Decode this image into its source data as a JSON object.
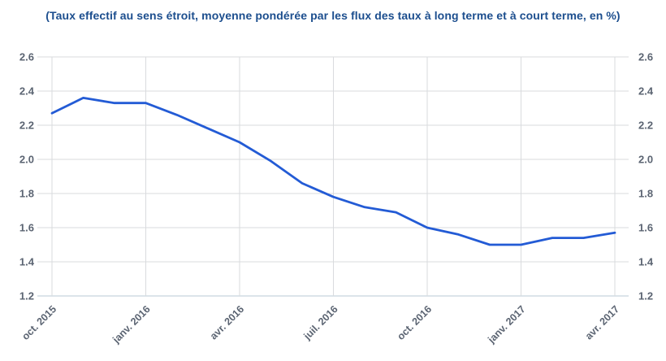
{
  "title": "(Taux effectif au sens étroit, moyenne pondérée par les flux des taux à long terme et à court terme, en %)",
  "colors": {
    "title": "#1c4e8e",
    "line": "#235bd5",
    "axis_label": "#5b6472",
    "gridline": "#d9dbde",
    "axis_line": "#bac9d6"
  },
  "chart_data": {
    "type": "line",
    "title": "(Taux effectif au sens étroit, moyenne pondérée par les flux des taux à long terme et à court terme, en %)",
    "x": [
      "oct. 2015",
      "nov. 2015",
      "déc. 2015",
      "janv. 2016",
      "févr. 2016",
      "mars 2016",
      "avr. 2016",
      "mai 2016",
      "juin 2016",
      "juil. 2016",
      "août 2016",
      "sept. 2016",
      "oct. 2016",
      "nov. 2016",
      "déc. 2016",
      "janv. 2017",
      "févr. 2017",
      "mars 2017",
      "avr. 2017"
    ],
    "values": [
      2.27,
      2.36,
      2.33,
      2.33,
      2.26,
      2.18,
      2.1,
      1.99,
      1.86,
      1.78,
      1.72,
      1.69,
      1.6,
      1.56,
      1.5,
      1.5,
      1.54,
      1.54,
      1.57
    ],
    "x_tick_labels": [
      "oct. 2015",
      "janv. 2016",
      "avr. 2016",
      "juil. 2016",
      "oct. 2016",
      "janv. 2017",
      "avr. 2017"
    ],
    "x_tick_every": 3,
    "y_ticks": [
      1.2,
      1.4,
      1.6,
      1.8,
      2.0,
      2.2,
      2.4,
      2.6
    ],
    "ylim": [
      1.2,
      2.6
    ],
    "xlabel": "",
    "ylabel": "",
    "grid": true,
    "y_axis_sides": "both",
    "legend_position": "none",
    "x_label_rotation_deg": -45
  }
}
